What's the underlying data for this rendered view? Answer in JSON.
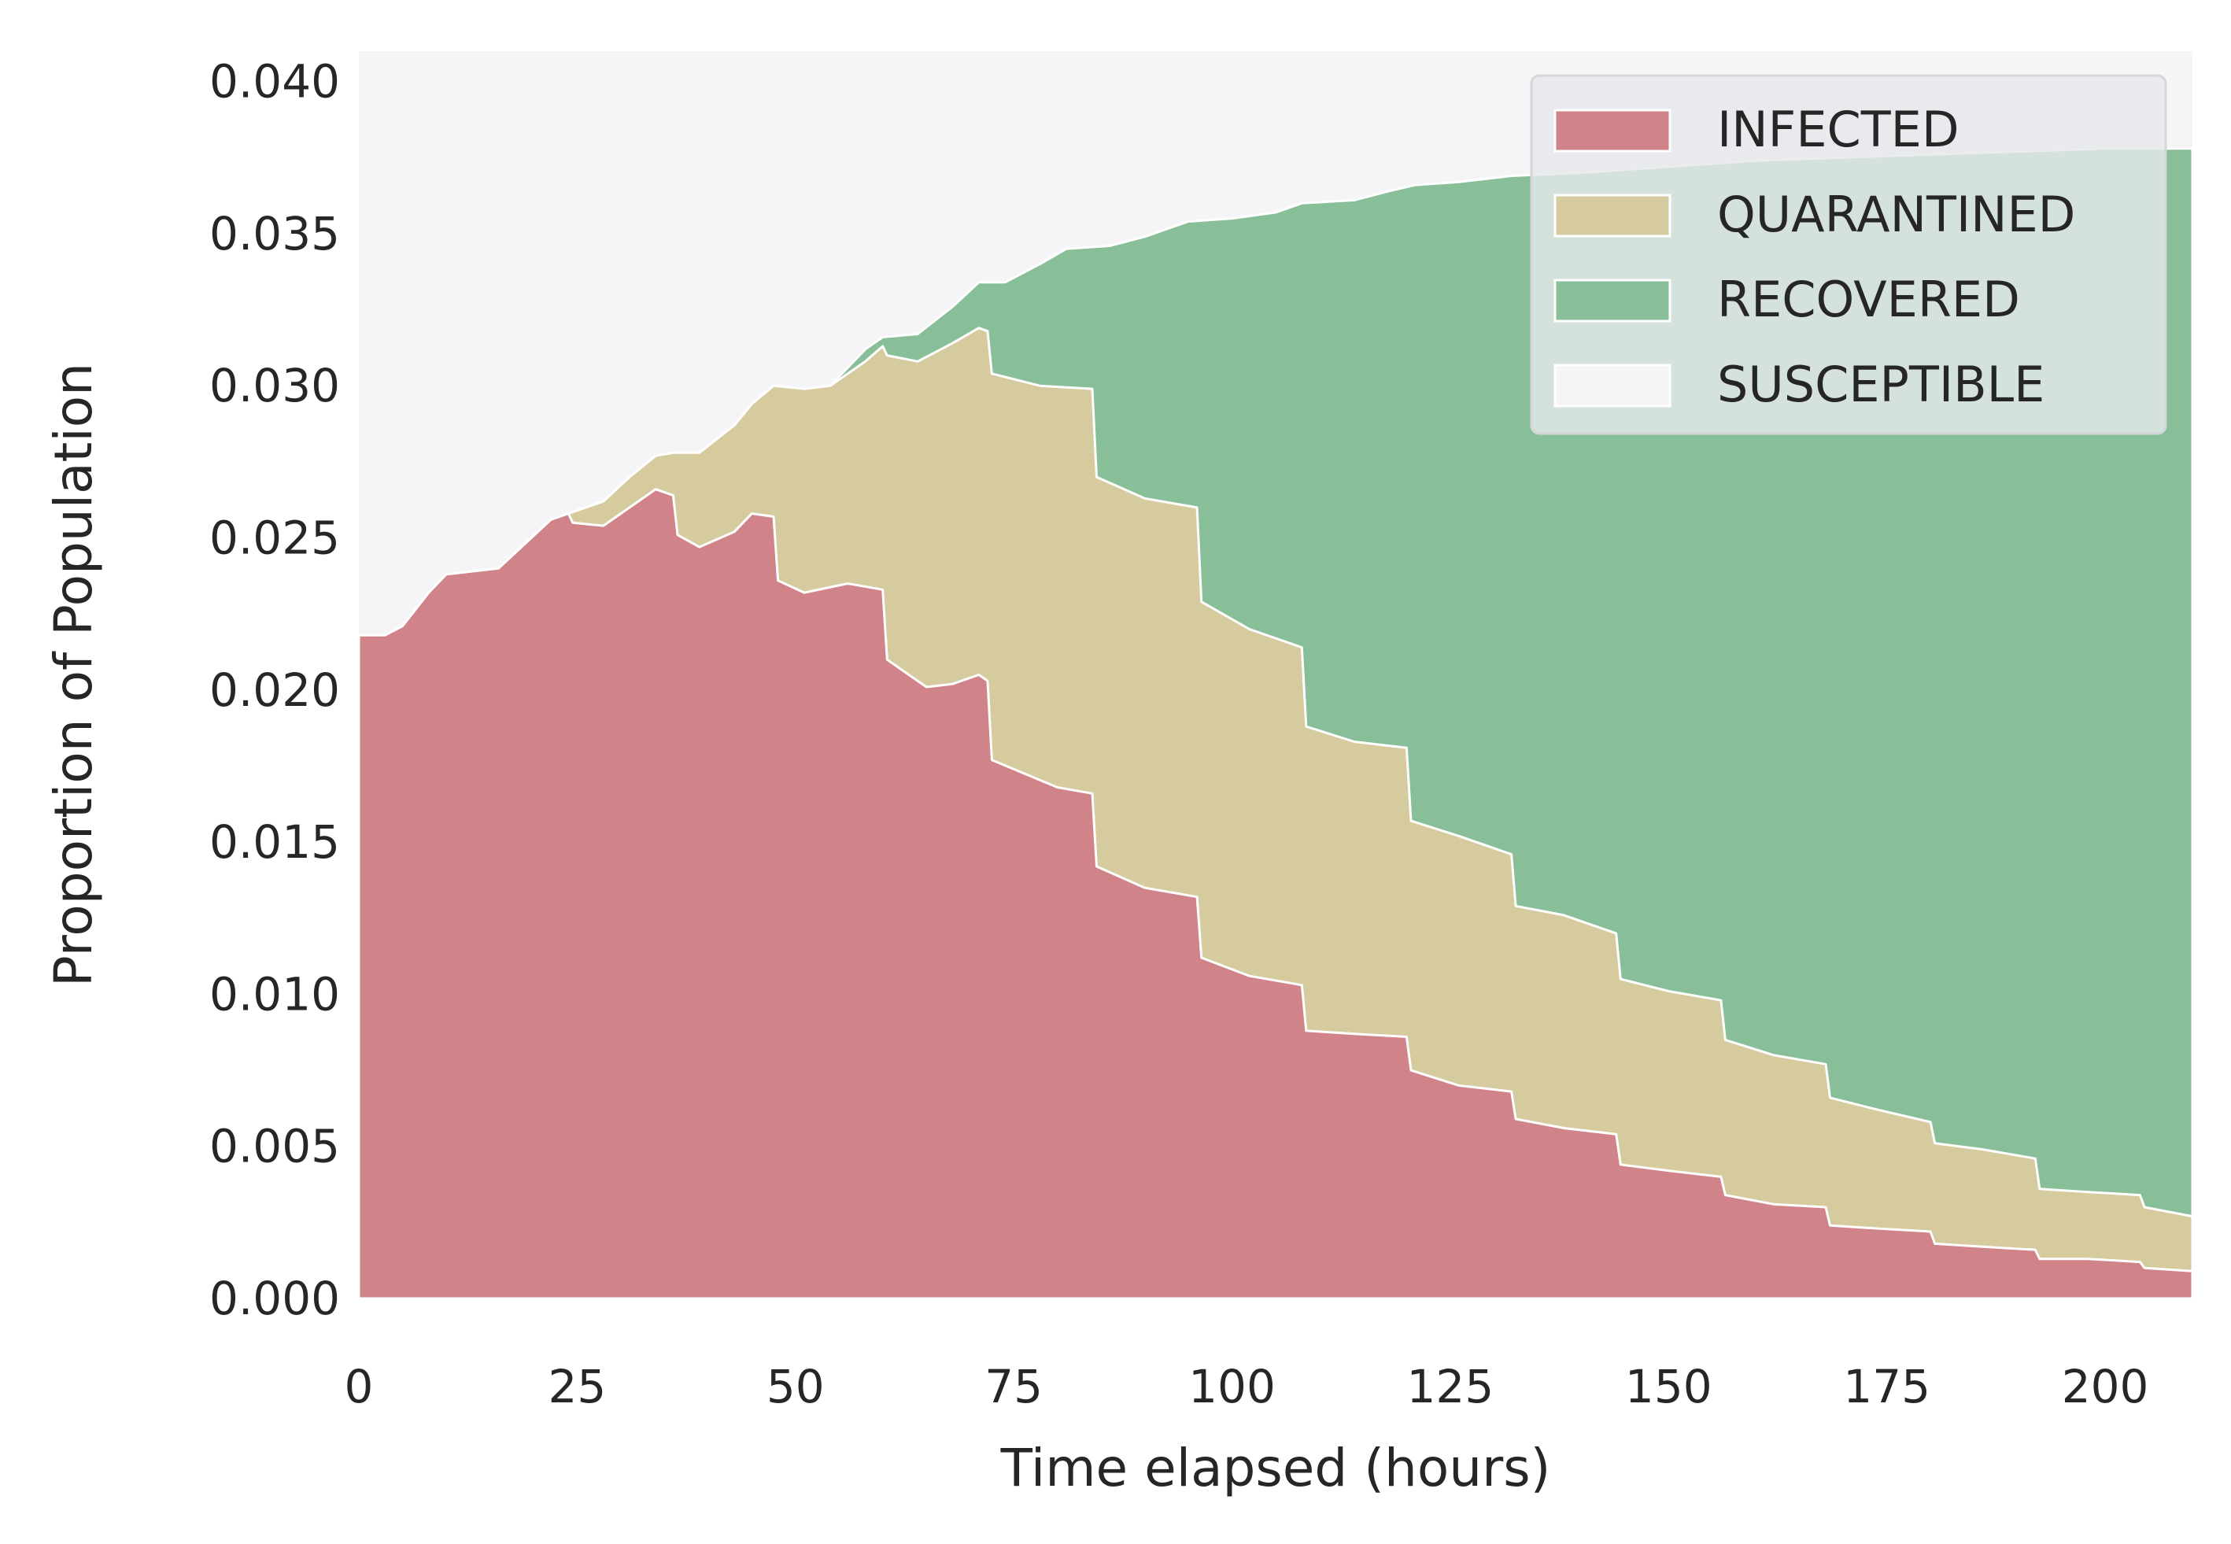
{
  "chart_data": {
    "type": "area",
    "stacked": true,
    "title": "",
    "xlabel": "Time elapsed (hours)",
    "ylabel": "Proportion of Population",
    "xlim": [
      0,
      210
    ],
    "ylim": [
      0,
      0.041
    ],
    "grid": true,
    "background_color": "#f5f5f8",
    "legend_position": "top-right",
    "xticks": [
      {
        "value": 0,
        "label": "0"
      },
      {
        "value": 25,
        "label": "25"
      },
      {
        "value": 50,
        "label": "50"
      },
      {
        "value": 75,
        "label": "75"
      },
      {
        "value": 100,
        "label": "100"
      },
      {
        "value": 125,
        "label": "125"
      },
      {
        "value": 150,
        "label": "150"
      },
      {
        "value": 175,
        "label": "175"
      },
      {
        "value": 200,
        "label": "200"
      }
    ],
    "yticks": [
      {
        "value": 0.0,
        "label": "0.000"
      },
      {
        "value": 0.005,
        "label": "0.005"
      },
      {
        "value": 0.01,
        "label": "0.010"
      },
      {
        "value": 0.015,
        "label": "0.015"
      },
      {
        "value": 0.02,
        "label": "0.020"
      },
      {
        "value": 0.025,
        "label": "0.025"
      },
      {
        "value": 0.03,
        "label": "0.030"
      },
      {
        "value": 0.035,
        "label": "0.035"
      },
      {
        "value": 0.04,
        "label": "0.040"
      }
    ],
    "series": [
      {
        "name": "INFECTED",
        "color": "#d08388",
        "cumulative_top": [
          [
            0,
            0.0218
          ],
          [
            3,
            0.0218
          ],
          [
            5,
            0.0221
          ],
          [
            8,
            0.0232
          ],
          [
            10,
            0.0238
          ],
          [
            16,
            0.024
          ],
          [
            19,
            0.0248
          ],
          [
            22,
            0.0256
          ],
          [
            24,
            0.0258
          ],
          [
            24.5,
            0.0255
          ],
          [
            28,
            0.0254
          ],
          [
            31,
            0.026
          ],
          [
            34,
            0.0266
          ],
          [
            36,
            0.0264
          ],
          [
            36.5,
            0.0251
          ],
          [
            39,
            0.0247
          ],
          [
            43,
            0.0252
          ],
          [
            45,
            0.0258
          ],
          [
            47.5,
            0.0257
          ],
          [
            48,
            0.0236
          ],
          [
            51,
            0.0232
          ],
          [
            56,
            0.0235
          ],
          [
            60,
            0.0233
          ],
          [
            60.5,
            0.021
          ],
          [
            65,
            0.0201
          ],
          [
            68,
            0.0202
          ],
          [
            71,
            0.0205
          ],
          [
            72,
            0.0203
          ],
          [
            72.5,
            0.0177
          ],
          [
            80,
            0.0168
          ],
          [
            84,
            0.0166
          ],
          [
            84.5,
            0.0142
          ],
          [
            90,
            0.0135
          ],
          [
            96,
            0.0132
          ],
          [
            96.5,
            0.0112
          ],
          [
            102,
            0.0106
          ],
          [
            108,
            0.0103
          ],
          [
            108.5,
            0.0088
          ],
          [
            114,
            0.0087
          ],
          [
            120,
            0.0086
          ],
          [
            120.5,
            0.0075
          ],
          [
            126,
            0.007
          ],
          [
            132,
            0.0068
          ],
          [
            132.5,
            0.0059
          ],
          [
            138,
            0.0056
          ],
          [
            144,
            0.0054
          ],
          [
            144.5,
            0.0044
          ],
          [
            150,
            0.0042
          ],
          [
            156,
            0.004
          ],
          [
            156.5,
            0.0034
          ],
          [
            162,
            0.0031
          ],
          [
            168,
            0.003
          ],
          [
            168.5,
            0.0024
          ],
          [
            174,
            0.0023
          ],
          [
            180,
            0.0022
          ],
          [
            180.5,
            0.0018
          ],
          [
            186,
            0.0017
          ],
          [
            192,
            0.0016
          ],
          [
            192.5,
            0.0013
          ],
          [
            198,
            0.0013
          ],
          [
            204,
            0.0012
          ],
          [
            204.5,
            0.001
          ],
          [
            210,
            0.0009
          ]
        ]
      },
      {
        "name": "QUARANTINED",
        "color": "#d6cb9f",
        "cumulative_top": [
          [
            0,
            0.0218
          ],
          [
            3,
            0.0218
          ],
          [
            5,
            0.0221
          ],
          [
            8,
            0.0232
          ],
          [
            10,
            0.0238
          ],
          [
            16,
            0.024
          ],
          [
            19,
            0.0248
          ],
          [
            22,
            0.0256
          ],
          [
            24,
            0.0258
          ],
          [
            28,
            0.0262
          ],
          [
            31,
            0.027
          ],
          [
            34,
            0.0277
          ],
          [
            36,
            0.0278
          ],
          [
            39,
            0.0278
          ],
          [
            43,
            0.0287
          ],
          [
            45,
            0.0294
          ],
          [
            47.5,
            0.03
          ],
          [
            51,
            0.0299
          ],
          [
            54,
            0.03
          ],
          [
            58,
            0.0308
          ],
          [
            60,
            0.0313
          ],
          [
            60.5,
            0.031
          ],
          [
            64,
            0.0308
          ],
          [
            68,
            0.0314
          ],
          [
            71,
            0.0319
          ],
          [
            72,
            0.0318
          ],
          [
            72.5,
            0.0304
          ],
          [
            78,
            0.03
          ],
          [
            84,
            0.0299
          ],
          [
            84.5,
            0.027
          ],
          [
            90,
            0.0263
          ],
          [
            96,
            0.026
          ],
          [
            96.5,
            0.0229
          ],
          [
            102,
            0.022
          ],
          [
            108,
            0.0214
          ],
          [
            108.5,
            0.0188
          ],
          [
            114,
            0.0183
          ],
          [
            120,
            0.0181
          ],
          [
            120.5,
            0.0157
          ],
          [
            126,
            0.0152
          ],
          [
            132,
            0.0146
          ],
          [
            132.5,
            0.0129
          ],
          [
            138,
            0.0126
          ],
          [
            144,
            0.012
          ],
          [
            144.5,
            0.0105
          ],
          [
            150,
            0.0101
          ],
          [
            156,
            0.0098
          ],
          [
            156.5,
            0.0085
          ],
          [
            162,
            0.008
          ],
          [
            168,
            0.0077
          ],
          [
            168.5,
            0.0066
          ],
          [
            174,
            0.0062
          ],
          [
            180,
            0.0058
          ],
          [
            180.5,
            0.0051
          ],
          [
            186,
            0.0049
          ],
          [
            192,
            0.0046
          ],
          [
            192.5,
            0.0036
          ],
          [
            198,
            0.0035
          ],
          [
            204,
            0.0034
          ],
          [
            204.5,
            0.003
          ],
          [
            210,
            0.0027
          ]
        ]
      },
      {
        "name": "RECOVERED",
        "color": "#88bf98",
        "cumulative_top": [
          [
            0,
            0.0218
          ],
          [
            3,
            0.0218
          ],
          [
            5,
            0.0221
          ],
          [
            8,
            0.0232
          ],
          [
            10,
            0.0238
          ],
          [
            16,
            0.024
          ],
          [
            19,
            0.0248
          ],
          [
            22,
            0.0256
          ],
          [
            24,
            0.0258
          ],
          [
            28,
            0.0262
          ],
          [
            31,
            0.027
          ],
          [
            34,
            0.0277
          ],
          [
            36,
            0.0278
          ],
          [
            39,
            0.0278
          ],
          [
            43,
            0.0287
          ],
          [
            45,
            0.0294
          ],
          [
            47.5,
            0.03
          ],
          [
            51,
            0.0299
          ],
          [
            54,
            0.03
          ],
          [
            58,
            0.0312
          ],
          [
            60,
            0.0316
          ],
          [
            64,
            0.0317
          ],
          [
            68,
            0.0326
          ],
          [
            71,
            0.0334
          ],
          [
            74,
            0.0334
          ],
          [
            78,
            0.034
          ],
          [
            81,
            0.0345
          ],
          [
            86,
            0.0346
          ],
          [
            90,
            0.0349
          ],
          [
            95,
            0.0354
          ],
          [
            100,
            0.0355
          ],
          [
            105,
            0.0357
          ],
          [
            108,
            0.036
          ],
          [
            114,
            0.0361
          ],
          [
            118,
            0.0364
          ],
          [
            121,
            0.0366
          ],
          [
            126,
            0.0367
          ],
          [
            132,
            0.0369
          ],
          [
            140,
            0.037
          ],
          [
            150,
            0.0372
          ],
          [
            160,
            0.0374
          ],
          [
            170,
            0.0375
          ],
          [
            180,
            0.0376
          ],
          [
            190,
            0.0377
          ],
          [
            200,
            0.0378
          ],
          [
            210,
            0.0378
          ]
        ]
      },
      {
        "name": "SUSCEPTIBLE",
        "color": "#f5f5f8",
        "cumulative_top": [
          [
            0,
            0.041
          ],
          [
            210,
            0.041
          ]
        ]
      }
    ]
  }
}
